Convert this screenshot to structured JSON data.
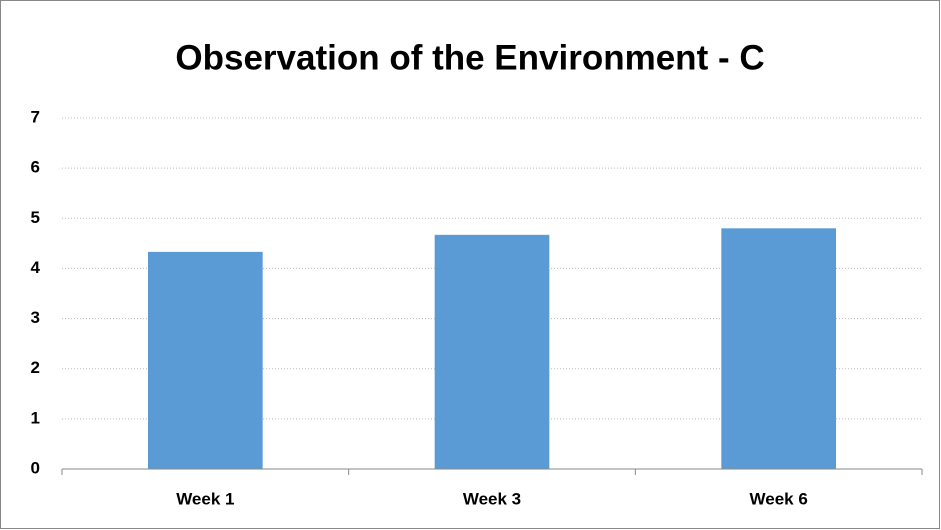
{
  "chart_data": {
    "type": "bar",
    "title": "Observation of the Environment - C",
    "categories": [
      "Week 1",
      "Week 3",
      "Week 6"
    ],
    "values": [
      4.33,
      4.67,
      4.8
    ],
    "color": "#5b9bd5",
    "ylim": [
      0,
      7
    ],
    "yticks": [
      0,
      1,
      2,
      3,
      4,
      5,
      6,
      7
    ],
    "grid": true
  }
}
